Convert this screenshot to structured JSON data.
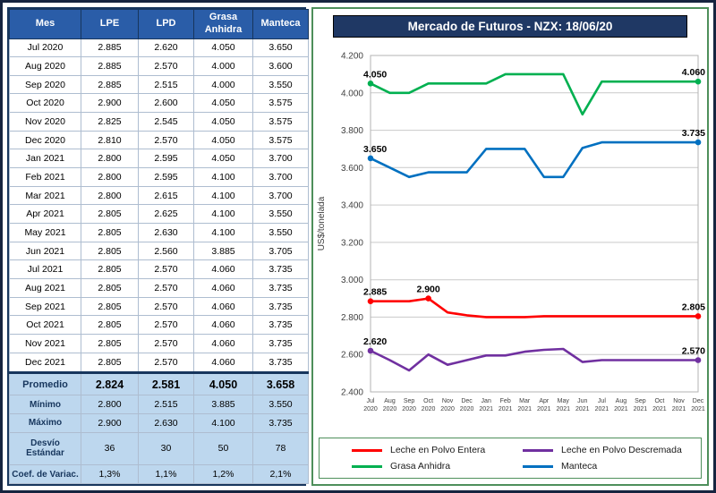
{
  "table": {
    "headers": [
      "Mes",
      "LPE",
      "LPD",
      "Grasa Anhidra",
      "Manteca"
    ],
    "rows": [
      [
        "Jul 2020",
        "2.885",
        "2.620",
        "4.050",
        "3.650"
      ],
      [
        "Aug 2020",
        "2.885",
        "2.570",
        "4.000",
        "3.600"
      ],
      [
        "Sep 2020",
        "2.885",
        "2.515",
        "4.000",
        "3.550"
      ],
      [
        "Oct 2020",
        "2.900",
        "2.600",
        "4.050",
        "3.575"
      ],
      [
        "Nov 2020",
        "2.825",
        "2.545",
        "4.050",
        "3.575"
      ],
      [
        "Dec 2020",
        "2.810",
        "2.570",
        "4.050",
        "3.575"
      ],
      [
        "Jan 2021",
        "2.800",
        "2.595",
        "4.050",
        "3.700"
      ],
      [
        "Feb 2021",
        "2.800",
        "2.595",
        "4.100",
        "3.700"
      ],
      [
        "Mar 2021",
        "2.800",
        "2.615",
        "4.100",
        "3.700"
      ],
      [
        "Apr 2021",
        "2.805",
        "2.625",
        "4.100",
        "3.550"
      ],
      [
        "May 2021",
        "2.805",
        "2.630",
        "4.100",
        "3.550"
      ],
      [
        "Jun 2021",
        "2.805",
        "2.560",
        "3.885",
        "3.705"
      ],
      [
        "Jul 2021",
        "2.805",
        "2.570",
        "4.060",
        "3.735"
      ],
      [
        "Aug 2021",
        "2.805",
        "2.570",
        "4.060",
        "3.735"
      ],
      [
        "Sep 2021",
        "2.805",
        "2.570",
        "4.060",
        "3.735"
      ],
      [
        "Oct 2021",
        "2.805",
        "2.570",
        "4.060",
        "3.735"
      ],
      [
        "Nov 2021",
        "2.805",
        "2.570",
        "4.060",
        "3.735"
      ],
      [
        "Dec 2021",
        "2.805",
        "2.570",
        "4.060",
        "3.735"
      ]
    ],
    "summary": [
      {
        "label": "Promedio",
        "values": [
          "2.824",
          "2.581",
          "4.050",
          "3.658"
        ]
      },
      {
        "label": "Mínimo",
        "values": [
          "2.800",
          "2.515",
          "3.885",
          "3.550"
        ]
      },
      {
        "label": "Máximo",
        "values": [
          "2.900",
          "2.630",
          "4.100",
          "3.735"
        ]
      },
      {
        "label": "Desvío Estándar",
        "values": [
          "36",
          "30",
          "50",
          "78"
        ]
      },
      {
        "label": "Coef. de Variac.",
        "values": [
          "1,3%",
          "1,1%",
          "1,2%",
          "2,1%"
        ]
      }
    ]
  },
  "chart_data": {
    "type": "line",
    "title": "Mercado de Futuros - NZX: 18/06/20",
    "ylabel": "US$/tonelada",
    "ylim": [
      2400,
      4200
    ],
    "ytick_step": 200,
    "grid": true,
    "legend_position": "bottom",
    "categories": [
      "Jul 2020",
      "Aug 2020",
      "Sep 2020",
      "Oct 2020",
      "Nov 2020",
      "Dec 2020",
      "Jan 2021",
      "Feb 2021",
      "Mar 2021",
      "Apr 2021",
      "May 2021",
      "Jun 2021",
      "Jul 2021",
      "Aug 2021",
      "Sep 2021",
      "Oct 2021",
      "Nov 2021",
      "Dec 2021"
    ],
    "series": [
      {
        "name": "Leche en Polvo Entera",
        "color": "#FF0000",
        "values": [
          2885,
          2885,
          2885,
          2900,
          2825,
          2810,
          2800,
          2800,
          2800,
          2805,
          2805,
          2805,
          2805,
          2805,
          2805,
          2805,
          2805,
          2805
        ]
      },
      {
        "name": "Leche en Polvo Descremada",
        "color": "#7030A0",
        "values": [
          2620,
          2570,
          2515,
          2600,
          2545,
          2570,
          2595,
          2595,
          2615,
          2625,
          2630,
          2560,
          2570,
          2570,
          2570,
          2570,
          2570,
          2570
        ]
      },
      {
        "name": "Grasa Anhidra",
        "color": "#00B050",
        "values": [
          4050,
          4000,
          4000,
          4050,
          4050,
          4050,
          4050,
          4100,
          4100,
          4100,
          4100,
          3885,
          4060,
          4060,
          4060,
          4060,
          4060,
          4060
        ]
      },
      {
        "name": "Manteca",
        "color": "#0070C0",
        "values": [
          3650,
          3600,
          3550,
          3575,
          3575,
          3575,
          3700,
          3700,
          3700,
          3550,
          3550,
          3705,
          3735,
          3735,
          3735,
          3735,
          3735,
          3735
        ]
      }
    ],
    "annotations": [
      {
        "series": 0,
        "index": 0,
        "text": "2.885"
      },
      {
        "series": 0,
        "index": 3,
        "text": "2.900"
      },
      {
        "series": 0,
        "index": 17,
        "text": "2.805"
      },
      {
        "series": 1,
        "index": 0,
        "text": "2.620"
      },
      {
        "series": 1,
        "index": 17,
        "text": "2.570"
      },
      {
        "series": 2,
        "index": 0,
        "text": "4.050"
      },
      {
        "series": 2,
        "index": 17,
        "text": "4.060"
      },
      {
        "series": 3,
        "index": 0,
        "text": "3.650"
      },
      {
        "series": 3,
        "index": 17,
        "text": "3.735"
      }
    ]
  },
  "colors": {
    "table_header_bg": "#2A5DA8",
    "summary_bg": "#BDD7EE",
    "chart_title_bg": "#1F3864",
    "chart_panel_border": "#4E8F5B",
    "outer_border": "#16243F"
  }
}
